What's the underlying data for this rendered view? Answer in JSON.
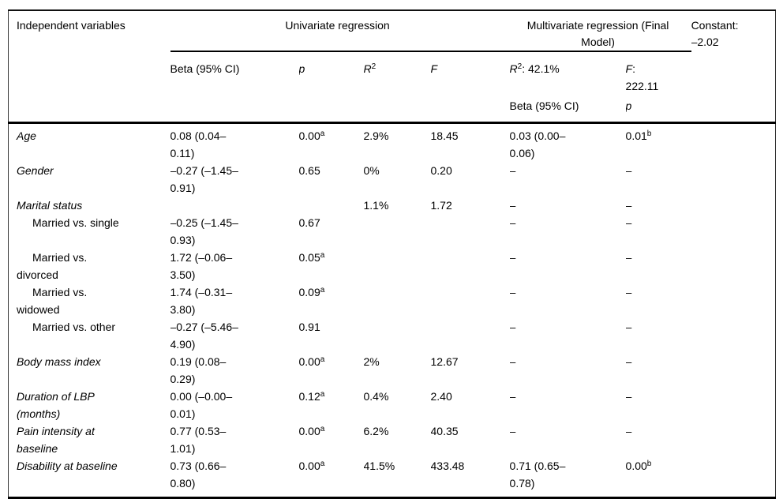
{
  "header": {
    "col1": "Independent variables",
    "univariate_title": "Univariate regression",
    "multivariate_title": "Multivariate regression (Final\nModel)",
    "constant": "Constant:\n–2.02",
    "uni": {
      "beta": "Beta (95% CI)",
      "p": "p",
      "r": "R",
      "r_sup": "2",
      "f": "F"
    },
    "multi": {
      "r": "R",
      "r_sup": "2",
      "r_rest": ": 42.1%",
      "f": "F",
      "f_rest": ":\n222.11",
      "beta": "Beta (95% CI)",
      "p": "p"
    }
  },
  "rows": [
    {
      "label": "Age",
      "sub": false,
      "cells": [
        "0.08 (0.04–\n0.11)",
        {
          "v": "0.00",
          "sup": "a"
        },
        "2.9%",
        "18.45",
        "0.03 (0.00–\n0.06)",
        {
          "v": "0.01",
          "sup": "b"
        },
        ""
      ]
    },
    {
      "label": "Gender",
      "sub": false,
      "cells": [
        "–0.27 (–1.45–\n0.91)",
        "0.65",
        "0%",
        "0.20",
        "–",
        "–",
        ""
      ]
    },
    {
      "label": "Marital status",
      "sub": false,
      "cells": [
        "",
        "",
        "1.1%",
        "1.72",
        "–",
        "–",
        ""
      ]
    },
    {
      "label": "Married vs. single",
      "sub": true,
      "cells": [
        "–0.25 (–1.45–\n0.93)",
        "0.67",
        "",
        "",
        "–",
        "–",
        ""
      ]
    },
    {
      "label": "Married vs.\ndivorced",
      "sub": true,
      "cells": [
        "1.72 (–0.06–\n3.50)",
        {
          "v": "0.05",
          "sup": "a"
        },
        "",
        "",
        "–",
        "–",
        ""
      ]
    },
    {
      "label": "Married vs.\nwidowed",
      "sub": true,
      "cells": [
        "1.74 (–0.31–\n3.80)",
        {
          "v": "0.09",
          "sup": "a"
        },
        "",
        "",
        "–",
        "–",
        ""
      ]
    },
    {
      "label": "Married vs. other",
      "sub": true,
      "cells": [
        "–0.27 (–5.46–\n4.90)",
        "0.91",
        "",
        "",
        "–",
        "–",
        ""
      ]
    },
    {
      "label": "Body mass index",
      "sub": false,
      "cells": [
        "0.19 (0.08–\n0.29)",
        {
          "v": "0.00",
          "sup": "a"
        },
        "2%",
        "12.67",
        "–",
        "–",
        ""
      ]
    },
    {
      "label": "Duration of LBP\n(months)",
      "sub": false,
      "cells": [
        "0.00 (–0.00–\n0.01)",
        {
          "v": "0.12",
          "sup": "a"
        },
        "0.4%",
        "2.40",
        "–",
        "–",
        ""
      ]
    },
    {
      "label": "Pain intensity at\nbaseline",
      "sub": false,
      "cells": [
        "0.77 (0.53–\n1.01)",
        {
          "v": "0.00",
          "sup": "a"
        },
        "6.2%",
        "40.35",
        "–",
        "–",
        ""
      ]
    },
    {
      "label": "Disability at baseline",
      "sub": false,
      "cells": [
        "0.73 (0.66–\n0.80)",
        {
          "v": "0.00",
          "sup": "a"
        },
        "41.5%",
        "433.48",
        "0.71 (0.65–\n0.78)",
        {
          "v": "0.00",
          "sup": "b"
        },
        ""
      ]
    }
  ]
}
